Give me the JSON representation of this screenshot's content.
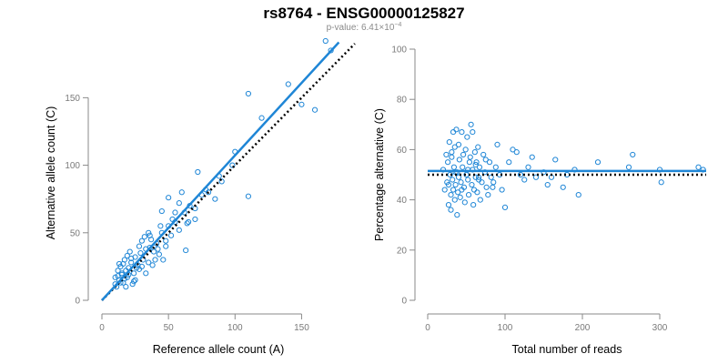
{
  "title": "rs8764 - ENSG00000125827",
  "subtitle": {
    "prefix": "p-value: 6.41×10",
    "exponent": "−4"
  },
  "colors": {
    "points": "#1f86d6",
    "fit_line": "#1f86d6",
    "reference_line": "#000000",
    "axis": "#8a8a8a"
  },
  "chart_data": [
    {
      "type": "scatter",
      "xlabel": "Reference allele count (A)",
      "ylabel": "Alternative allele count (C)",
      "xlim": [
        0,
        175
      ],
      "ylim": [
        0,
        190
      ],
      "xticks": [
        0,
        50,
        100,
        150
      ],
      "yticks": [
        0,
        50,
        100,
        150
      ],
      "grid": false,
      "fit_line": {
        "style": "solid",
        "from": [
          0,
          0
        ],
        "to": [
          178,
          191
        ]
      },
      "reference_line": {
        "style": "dotted",
        "from": [
          0,
          0
        ],
        "to": [
          190,
          190
        ]
      },
      "x": [
        10,
        11,
        12,
        13,
        14,
        15,
        16,
        17,
        18,
        19,
        20,
        22,
        24,
        25,
        27,
        29,
        31,
        33,
        35,
        37,
        39,
        41,
        43,
        45,
        48,
        50,
        52,
        55,
        58,
        62,
        66,
        70,
        75,
        80,
        85,
        90,
        98,
        110,
        120,
        140,
        160,
        168,
        12,
        14,
        16,
        18,
        20,
        22,
        25,
        28,
        30,
        33,
        36,
        40,
        44,
        48,
        53,
        58,
        64,
        70,
        78,
        88,
        100,
        110,
        15,
        19,
        23,
        26,
        30,
        35,
        38,
        42,
        50,
        55,
        60,
        65,
        72,
        10,
        13,
        17,
        21,
        24,
        28,
        32,
        36,
        45,
        150,
        172,
        63,
        46
      ],
      "y": [
        12,
        10,
        18,
        15,
        25,
        20,
        13,
        30,
        22,
        17,
        24,
        28,
        20,
        32,
        26,
        35,
        30,
        38,
        28,
        45,
        36,
        42,
        34,
        50,
        44,
        55,
        48,
        58,
        52,
        65,
        70,
        60,
        78,
        80,
        75,
        88,
        100,
        77,
        135,
        160,
        141,
        192,
        22,
        13,
        27,
        10,
        19,
        31,
        15,
        40,
        25,
        20,
        48,
        30,
        55,
        40,
        60,
        72,
        57,
        68,
        82,
        92,
        110,
        153,
        19,
        33,
        12,
        24,
        44,
        50,
        26,
        38,
        76,
        65,
        80,
        58,
        95,
        17,
        27,
        16,
        36,
        14,
        23,
        47,
        39,
        66,
        145,
        185,
        37,
        30
      ]
    },
    {
      "type": "scatter",
      "xlabel": "Total number of reads",
      "ylabel": "Percentage alternative (C)",
      "xlim": [
        0,
        360
      ],
      "ylim": [
        0,
        100
      ],
      "xticks": [
        0,
        100,
        200,
        300
      ],
      "yticks": [
        0,
        20,
        40,
        60,
        80,
        100
      ],
      "grid": false,
      "fit_line": {
        "style": "solid",
        "y": 51.5
      },
      "reference_line": {
        "style": "dotted",
        "y": 50
      },
      "x": [
        20,
        22,
        24,
        25,
        26,
        27,
        28,
        29,
        30,
        30,
        31,
        32,
        33,
        33,
        34,
        35,
        35,
        36,
        37,
        38,
        38,
        39,
        40,
        40,
        41,
        42,
        43,
        44,
        45,
        46,
        47,
        48,
        49,
        50,
        51,
        52,
        53,
        54,
        55,
        56,
        57,
        58,
        59,
        60,
        61,
        62,
        63,
        64,
        65,
        66,
        67,
        68,
        70,
        72,
        74,
        76,
        78,
        80,
        82,
        85,
        88,
        90,
        93,
        96,
        100,
        105,
        110,
        115,
        120,
        125,
        130,
        135,
        140,
        150,
        155,
        160,
        165,
        175,
        180,
        190,
        195,
        220,
        260,
        265,
        300,
        302,
        350,
        356,
        27,
        31,
        36,
        44,
        52,
        58,
        66,
        75,
        62,
        84
      ],
      "y": [
        52,
        44,
        58,
        47,
        55,
        38,
        63,
        50,
        42,
        36,
        57,
        48,
        67,
        44,
        53,
        61,
        40,
        46,
        68,
        51,
        34,
        43,
        49,
        62,
        56,
        41,
        47,
        67,
        53,
        58,
        45,
        39,
        60,
        50,
        65,
        48,
        42,
        55,
        57,
        70,
        46,
        52,
        38,
        44,
        59,
        49,
        55,
        43,
        61,
        48,
        53,
        40,
        47,
        58,
        51,
        45,
        42,
        55,
        49,
        47,
        53,
        62,
        50,
        44,
        37,
        55,
        60,
        59,
        50,
        48,
        53,
        57,
        49,
        51,
        46,
        49,
        56,
        45,
        50,
        52,
        42,
        55,
        53,
        58,
        52,
        47,
        53,
        52,
        46,
        59,
        51,
        44,
        52,
        67,
        49,
        56,
        54,
        45
      ]
    }
  ]
}
